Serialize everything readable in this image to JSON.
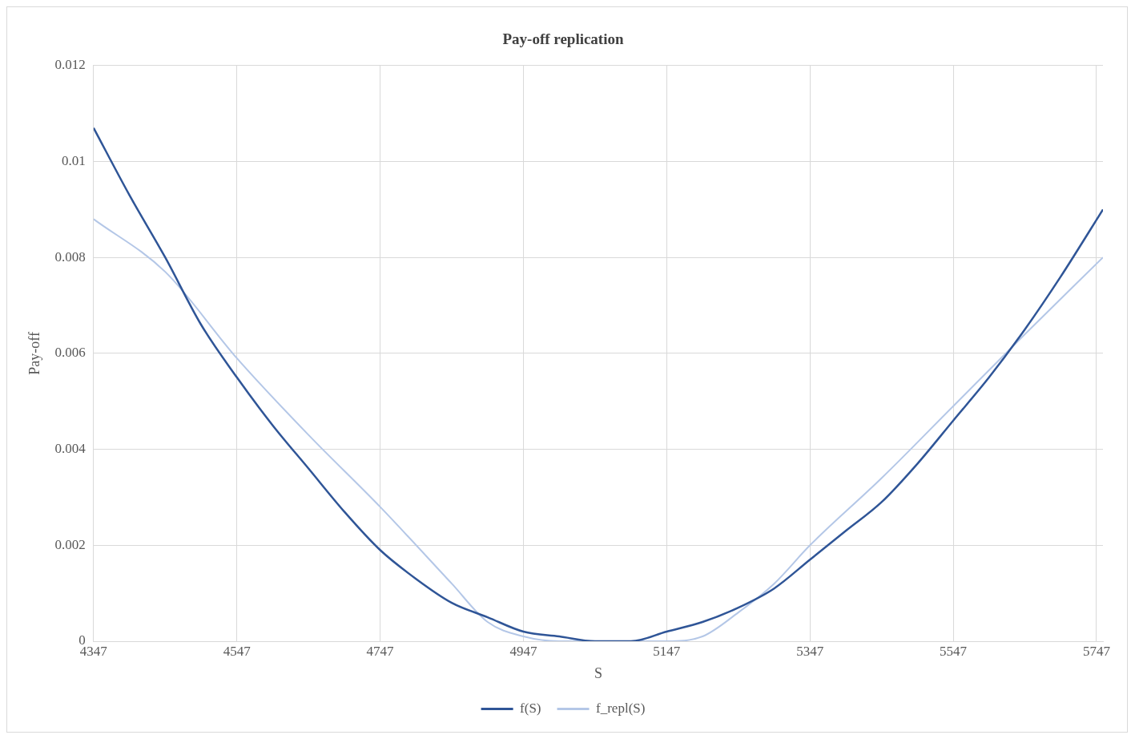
{
  "chart_data": {
    "type": "line",
    "title": "Pay-off replication",
    "xlabel": "S",
    "ylabel": "Pay-off",
    "xlim": [
      4347,
      5756
    ],
    "xticks": [
      4347,
      4547,
      4747,
      4947,
      5147,
      5347,
      5547,
      5747
    ],
    "ylim": [
      0,
      0.012
    ],
    "yticks": [
      0,
      0.002,
      0.004,
      0.006,
      0.008,
      0.01,
      0.012
    ],
    "grid": true,
    "legend": "bottom",
    "marker": "none",
    "line_style": "solid",
    "series": [
      {
        "name": "f(S)",
        "color": "#2f5597",
        "x": [
          4347,
          4397,
          4447,
          4497,
          4547,
          4597,
          4647,
          4697,
          4747,
          4797,
          4847,
          4897,
          4947,
          4997,
          5047,
          5097,
          5147,
          5197,
          5247,
          5297,
          5347,
          5397,
          5447,
          5497,
          5547,
          5597,
          5647,
          5697,
          5756
        ],
        "values": [
          0.0107,
          0.0093,
          0.008,
          0.0066,
          0.0055,
          0.0045,
          0.0036,
          0.0027,
          0.0019,
          0.0013,
          0.0008,
          0.0005,
          0.0002,
          0.0001,
          0,
          0,
          0.0002,
          0.0004,
          0.0007,
          0.0011,
          0.0017,
          0.0023,
          0.0029,
          0.0037,
          0.0046,
          0.0055,
          0.0065,
          0.0076,
          0.009
        ]
      },
      {
        "name": "f_repl(S)",
        "color": "#b4c7e7",
        "x": [
          4347,
          4447,
          4547,
          4647,
          4747,
          4847,
          4897,
          4947,
          4997,
          5047,
          5097,
          5147,
          5197,
          5247,
          5297,
          5347,
          5447,
          5547,
          5647,
          5756
        ],
        "values": [
          0.0088,
          0.0077,
          0.0059,
          0.0043,
          0.0028,
          0.0012,
          0.0004,
          0.0001,
          0,
          0,
          0,
          0,
          0.0001,
          0.0006,
          0.0012,
          0.002,
          0.0034,
          0.0049,
          0.0064,
          0.008
        ]
      }
    ]
  }
}
